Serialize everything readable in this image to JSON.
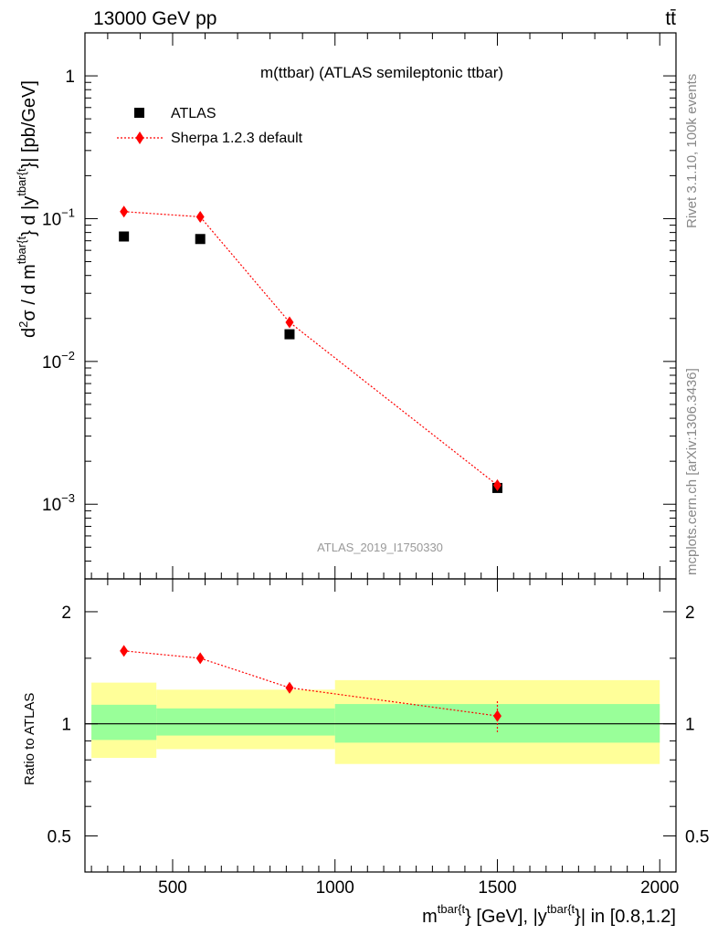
{
  "header": {
    "left": "13000 GeV pp",
    "right": "tt̄"
  },
  "side": {
    "rivet": "Rivet 3.1.10,  100k events",
    "mcplots": "mcplots.cern.ch [arXiv:1306.3436]"
  },
  "chart_data": [
    {
      "type": "scatter",
      "title": "m(ttbar) (ATLAS semileptonic ttbar)",
      "analysis_label": "ATLAS_2019_I1750330",
      "ylabel": "d²σ / d m^{tbar{t}} d |y^{tbar{t}}| [pb/GeV]",
      "ylabel_parts": {
        "d": "d",
        "sup2": "2",
        "sigma": "σ / d m",
        "sup1": "tbar{t",
        "mid": "} d |y",
        "sup2b": "tbar{t",
        "end": "}| [pb/GeV]"
      },
      "y_scale": "log",
      "ylim": [
        0.0003,
        2.0
      ],
      "xlim": [
        230,
        2050
      ],
      "y_ticks": [
        {
          "value": 1,
          "label": "1"
        },
        {
          "value": 0.1,
          "label": "10",
          "exp": "−1"
        },
        {
          "value": 0.01,
          "label": "10",
          "exp": "−2"
        },
        {
          "value": 0.001,
          "label": "10",
          "exp": "−3"
        }
      ],
      "legend_position": "top-left",
      "series": [
        {
          "name": "ATLAS",
          "marker": "square",
          "color": "#000000",
          "x": [
            350,
            585,
            860,
            1500
          ],
          "y": [
            0.075,
            0.072,
            0.0155,
            0.0013
          ]
        },
        {
          "name": "Sherpa 1.2.3 default",
          "marker": "diamond",
          "color": "#ff0000",
          "line": "dotted",
          "x": [
            350,
            585,
            860,
            1500
          ],
          "y": [
            0.112,
            0.103,
            0.0188,
            0.00136
          ]
        }
      ]
    },
    {
      "type": "scatter",
      "ylabel": "Ratio to ATLAS",
      "xlabel_parts": {
        "m": "m",
        "sup1": "tbar{t",
        "mid": "} [GeV], |y",
        "sup2": "tbar{t",
        "end": "}| in [0.8,1.2]"
      },
      "y_scale": "log",
      "ylim": [
        0.4,
        2.45
      ],
      "xlim": [
        230,
        2050
      ],
      "x_ticks": [
        500,
        1000,
        1500,
        2000
      ],
      "y_ticks": [
        {
          "value": 0.5,
          "label": "0.5"
        },
        {
          "value": 1,
          "label": "1"
        },
        {
          "value": 2,
          "label": "2"
        }
      ],
      "bands": [
        {
          "x": [
            250,
            450
          ],
          "yellow": [
            0.81,
            1.29
          ],
          "green": [
            0.905,
            1.125
          ]
        },
        {
          "x": [
            450,
            1000
          ],
          "yellow": [
            0.855,
            1.235
          ],
          "green": [
            0.93,
            1.1
          ]
        },
        {
          "x": [
            1000,
            2000
          ],
          "yellow": [
            0.78,
            1.31
          ],
          "green": [
            0.89,
            1.13
          ]
        }
      ],
      "colors": {
        "yellow": "#ffff99",
        "green": "#99ff99",
        "mc": "#ff0000"
      },
      "series": [
        {
          "name": "Sherpa 1.2.3 default",
          "x": [
            350,
            585,
            860,
            1500
          ],
          "y": [
            1.57,
            1.5,
            1.25,
            1.05
          ],
          "err": [
            0.01,
            0.01,
            0.04,
            0.1
          ]
        }
      ]
    }
  ]
}
